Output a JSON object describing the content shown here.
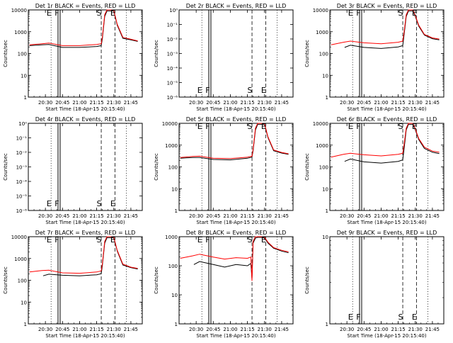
{
  "chart_data": [
    {
      "type": "line",
      "title": "Det 1r BLACK = Events, RED = LLD",
      "xlabel": "Start Time (18-Apr-15 20:15:40)",
      "ylabel": "Counts/sec",
      "yscale": "log",
      "ylim": [
        1,
        10000
      ],
      "ytick_labels": [
        "1",
        "10",
        "100",
        "1000",
        "10000"
      ],
      "xlim": [
        "20:15",
        "21:55"
      ],
      "xtick_labels": [
        "20:30",
        "20:45",
        "21:00",
        "21:15",
        "21:30",
        "21:45"
      ],
      "markers": [
        {
          "label": "E",
          "time": "20:35",
          "style": "dotted"
        },
        {
          "label": "F",
          "time": "20:42",
          "style": "double"
        },
        {
          "label": "S",
          "time": "21:19",
          "style": "dashed"
        },
        {
          "label": "E",
          "time": "21:31",
          "style": "dashed"
        },
        {
          "label": "",
          "time": "21:41",
          "style": "dotted"
        }
      ],
      "series": [
        {
          "color": "#000000",
          "x": [
            "20:16",
            "20:27",
            "20:33",
            "20:45",
            "21:00",
            "21:15",
            "21:19",
            "21:20",
            "21:22",
            "21:24",
            "21:27",
            "21:30",
            "21:33",
            "21:38",
            "21:45",
            "21:51"
          ],
          "values": [
            230,
            250,
            260,
            190,
            190,
            210,
            230,
            500,
            5000,
            9000,
            9000,
            9000,
            2000,
            500,
            420,
            360
          ]
        },
        {
          "color": "#ff0000",
          "x": [
            "20:16",
            "20:27",
            "20:33",
            "20:45",
            "21:00",
            "21:15",
            "21:19",
            "21:20",
            "21:22",
            "21:24",
            "21:27",
            "21:30",
            "21:33",
            "21:38",
            "21:45",
            "21:51"
          ],
          "values": [
            250,
            280,
            300,
            230,
            230,
            260,
            280,
            600,
            6000,
            10000,
            10000,
            9500,
            2200,
            550,
            450,
            380
          ]
        }
      ]
    },
    {
      "type": "line",
      "title": "Det 2r BLACK = Events, RED = LLD",
      "xlabel": "Start Time (18-Apr-15 20:15:40)",
      "ylabel": "Counts/sec",
      "yscale": "log",
      "ylim": [
        1e-06,
        1
      ],
      "ytick_labels": [
        "10⁻⁶",
        "10⁻⁵",
        "10⁻⁴",
        "10⁻³",
        "10⁻²",
        "10⁻¹",
        "10⁰"
      ],
      "xlim": [
        "20:15",
        "21:55"
      ],
      "xtick_labels": [
        "20:30",
        "20:45",
        "21:00",
        "21:15",
        "21:30",
        "21:45"
      ],
      "markers": [
        {
          "label": "E",
          "time": "20:35",
          "style": "dotted"
        },
        {
          "label": "F",
          "time": "20:42",
          "style": "double"
        },
        {
          "label": "S",
          "time": "21:19",
          "style": "dashed"
        },
        {
          "label": "E",
          "time": "21:31",
          "style": "dashed"
        },
        {
          "label": "",
          "time": "21:41",
          "style": "dotted"
        }
      ],
      "series": []
    },
    {
      "type": "line",
      "title": "Det 3r BLACK = Events, RED = LLD",
      "xlabel": "Start Time (18-Apr-15 20:15:40)",
      "ylabel": "Counts/sec",
      "yscale": "log",
      "ylim": [
        1,
        10000
      ],
      "ytick_labels": [
        "1",
        "10",
        "100",
        "1000",
        "10000"
      ],
      "xlim": [
        "20:15",
        "21:55"
      ],
      "xtick_labels": [
        "20:30",
        "20:45",
        "21:00",
        "21:15",
        "21:30",
        "21:45"
      ],
      "markers": [
        {
          "label": "E",
          "time": "20:35",
          "style": "dotted"
        },
        {
          "label": "F",
          "time": "20:42",
          "style": "double"
        },
        {
          "label": "S",
          "time": "21:19",
          "style": "dashed"
        },
        {
          "label": "E",
          "time": "21:31",
          "style": "dashed"
        },
        {
          "label": "",
          "time": "21:41",
          "style": "dotted"
        }
      ],
      "series": [
        {
          "color": "#000000",
          "x": [
            "20:28",
            "20:33",
            "20:45",
            "21:00",
            "21:15",
            "21:19",
            "21:20",
            "21:22",
            "21:24",
            "21:26",
            "21:28",
            "21:30",
            "21:33",
            "21:38",
            "21:45",
            "21:51"
          ],
          "values": [
            190,
            240,
            190,
            170,
            200,
            230,
            600,
            5000,
            9000,
            9000,
            9000,
            5000,
            1800,
            700,
            480,
            420
          ]
        },
        {
          "color": "#ff0000",
          "x": [
            "20:16",
            "20:27",
            "20:33",
            "20:45",
            "21:00",
            "21:15",
            "21:19",
            "21:20",
            "21:22",
            "21:24",
            "21:26",
            "21:28",
            "21:30",
            "21:33",
            "21:38",
            "21:45",
            "21:51"
          ],
          "values": [
            250,
            330,
            370,
            310,
            280,
            330,
            370,
            800,
            6000,
            10000,
            10000,
            10000,
            5500,
            2000,
            750,
            520,
            460
          ]
        }
      ]
    },
    {
      "type": "line",
      "title": "Det 4r BLACK = Events, RED = LLD",
      "xlabel": "Start Time (18-Apr-15 20:15:40)",
      "ylabel": "Counts/sec",
      "yscale": "log",
      "ylim": [
        1e-06,
        1
      ],
      "ytick_labels": [
        "10⁻⁶",
        "10⁻⁵",
        "10⁻⁴",
        "10⁻³",
        "10⁻²",
        "10⁻¹",
        "10⁰"
      ],
      "xlim": [
        "20:15",
        "21:55"
      ],
      "xtick_labels": [
        "20:30",
        "20:45",
        "21:00",
        "21:15",
        "21:30",
        "21:45"
      ],
      "markers": [
        {
          "label": "E",
          "time": "20:35",
          "style": "dotted"
        },
        {
          "label": "F",
          "time": "20:42",
          "style": "double"
        },
        {
          "label": "S",
          "time": "21:19",
          "style": "dashed"
        },
        {
          "label": "E",
          "time": "21:31",
          "style": "dashed"
        },
        {
          "label": "",
          "time": "21:41",
          "style": "dotted"
        }
      ],
      "series": []
    },
    {
      "type": "line",
      "title": "Det 5r BLACK = Events, RED = LLD",
      "xlabel": "Start Time (18-Apr-15 20:15:40)",
      "ylabel": "Counts/sec",
      "yscale": "log",
      "ylim": [
        1,
        10000
      ],
      "ytick_labels": [
        "1",
        "10",
        "100",
        "1000",
        "10000"
      ],
      "xlim": [
        "20:15",
        "21:55"
      ],
      "xtick_labels": [
        "20:30",
        "20:45",
        "21:00",
        "21:15",
        "21:30",
        "21:45"
      ],
      "markers": [
        {
          "label": "E",
          "time": "20:35",
          "style": "dotted"
        },
        {
          "label": "F",
          "time": "20:42",
          "style": "double"
        },
        {
          "label": "S",
          "time": "21:19",
          "style": "dashed"
        },
        {
          "label": "E",
          "time": "21:31",
          "style": "dashed"
        },
        {
          "label": "",
          "time": "21:41",
          "style": "dotted"
        }
      ],
      "series": [
        {
          "color": "#000000",
          "x": [
            "20:16",
            "20:27",
            "20:33",
            "20:45",
            "21:00",
            "21:15",
            "21:19",
            "21:20",
            "21:22",
            "21:24",
            "21:27",
            "21:30",
            "21:33",
            "21:38",
            "21:45",
            "21:51"
          ],
          "values": [
            250,
            270,
            270,
            220,
            210,
            250,
            280,
            550,
            5000,
            9000,
            9000,
            9000,
            2200,
            550,
            430,
            380
          ]
        },
        {
          "color": "#ff0000",
          "x": [
            "20:16",
            "20:27",
            "20:33",
            "20:45",
            "21:00",
            "21:15",
            "21:19",
            "21:20",
            "21:22",
            "21:24",
            "21:27",
            "21:30",
            "21:33",
            "21:38",
            "21:45",
            "21:51"
          ],
          "values": [
            270,
            300,
            310,
            250,
            240,
            280,
            310,
            650,
            6000,
            10000,
            10000,
            9500,
            2400,
            600,
            460,
            400
          ]
        }
      ]
    },
    {
      "type": "line",
      "title": "Det 6r BLACK = Events, RED = LLD",
      "xlabel": "Start Time (18-Apr-15 20:15:40)",
      "ylabel": "Counts/sec",
      "yscale": "log",
      "ylim": [
        1,
        10000
      ],
      "ytick_labels": [
        "1",
        "10",
        "100",
        "1000",
        "10000"
      ],
      "xlim": [
        "20:15",
        "21:55"
      ],
      "xtick_labels": [
        "20:30",
        "20:45",
        "21:00",
        "21:15",
        "21:30",
        "21:45"
      ],
      "markers": [
        {
          "label": "E",
          "time": "20:35",
          "style": "dotted"
        },
        {
          "label": "F",
          "time": "20:42",
          "style": "double"
        },
        {
          "label": "S",
          "time": "21:19",
          "style": "dashed"
        },
        {
          "label": "E",
          "time": "21:31",
          "style": "dashed"
        },
        {
          "label": "",
          "time": "21:41",
          "style": "dotted"
        }
      ],
      "series": [
        {
          "color": "#000000",
          "x": [
            "20:28",
            "20:33",
            "20:45",
            "21:00",
            "21:15",
            "21:19",
            "21:20",
            "21:22",
            "21:24",
            "21:26",
            "21:28",
            "21:30",
            "21:33",
            "21:38",
            "21:45",
            "21:51"
          ],
          "values": [
            180,
            230,
            170,
            150,
            180,
            210,
            550,
            5000,
            9000,
            9000,
            9000,
            5000,
            1800,
            700,
            470,
            410
          ]
        },
        {
          "color": "#ff0000",
          "x": [
            "20:16",
            "20:27",
            "20:33",
            "20:45",
            "21:00",
            "21:15",
            "21:19",
            "21:20",
            "21:22",
            "21:24",
            "21:26",
            "21:28",
            "21:30",
            "21:33",
            "21:38",
            "21:45",
            "21:51"
          ],
          "values": [
            280,
            380,
            420,
            360,
            320,
            380,
            420,
            900,
            6000,
            10000,
            10000,
            10000,
            5500,
            2000,
            800,
            530,
            470
          ]
        }
      ]
    },
    {
      "type": "line",
      "title": "Det 7r BLACK = Events, RED = LLD",
      "xlabel": "Start Time (18-Apr-15 20:15:40)",
      "ylabel": "Counts/sec",
      "yscale": "log",
      "ylim": [
        1,
        10000
      ],
      "ytick_labels": [
        "1",
        "10",
        "100",
        "1000",
        "10000"
      ],
      "xlim": [
        "20:15",
        "21:55"
      ],
      "xtick_labels": [
        "20:30",
        "20:45",
        "21:00",
        "21:15",
        "21:30",
        "21:45"
      ],
      "markers": [
        {
          "label": "E",
          "time": "20:35",
          "style": "dotted"
        },
        {
          "label": "F",
          "time": "20:42",
          "style": "double"
        },
        {
          "label": "S",
          "time": "21:19",
          "style": "dashed"
        },
        {
          "label": "E",
          "time": "21:31",
          "style": "dashed"
        },
        {
          "label": "",
          "time": "21:41",
          "style": "dotted"
        }
      ],
      "series": [
        {
          "color": "#000000",
          "x": [
            "20:28",
            "20:33",
            "20:45",
            "21:00",
            "21:15",
            "21:19",
            "21:20",
            "21:22",
            "21:24",
            "21:27",
            "21:30",
            "21:33",
            "21:38",
            "21:45",
            "21:51"
          ],
          "values": [
            160,
            190,
            170,
            160,
            180,
            200,
            500,
            5000,
            9000,
            9000,
            9000,
            2200,
            500,
            380,
            330
          ]
        },
        {
          "color": "#ff0000",
          "x": [
            "20:16",
            "20:27",
            "20:33",
            "20:45",
            "21:00",
            "21:15",
            "21:19",
            "21:20",
            "21:22",
            "21:24",
            "21:27",
            "21:30",
            "21:33",
            "21:38",
            "21:45",
            "21:51"
          ],
          "values": [
            240,
            280,
            290,
            220,
            210,
            240,
            270,
            600,
            6000,
            10000,
            10000,
            9500,
            2400,
            550,
            400,
            350
          ]
        }
      ]
    },
    {
      "type": "line",
      "title": "Det 8r BLACK = Events, RED = LLD",
      "xlabel": "Start Time (18-Apr-15 20:15:40)",
      "ylabel": "Counts/sec",
      "yscale": "log",
      "ylim": [
        1,
        1000
      ],
      "ytick_labels": [
        "1",
        "10",
        "100",
        "1000"
      ],
      "xlim": [
        "20:15",
        "21:55"
      ],
      "xtick_labels": [
        "20:30",
        "20:45",
        "21:00",
        "21:15",
        "21:30",
        "21:45"
      ],
      "markers": [
        {
          "label": "E",
          "time": "20:35",
          "style": "dotted"
        },
        {
          "label": "F",
          "time": "20:42",
          "style": "double"
        },
        {
          "label": "S",
          "time": "21:19",
          "style": "dashed"
        },
        {
          "label": "E",
          "time": "21:31",
          "style": "dashed"
        },
        {
          "label": "",
          "time": "21:41",
          "style": "dotted"
        }
      ],
      "series": [
        {
          "color": "#000000",
          "x": [
            "20:28",
            "20:33",
            "20:45",
            "20:55",
            "21:05",
            "21:15",
            "21:18",
            "21:19",
            "21:20",
            "21:22",
            "21:24",
            "21:27",
            "21:30",
            "21:33",
            "21:38",
            "21:45",
            "21:51"
          ],
          "values": [
            110,
            140,
            110,
            90,
            110,
            100,
            120,
            35,
            600,
            900,
            950,
            950,
            900,
            600,
            400,
            320,
            280
          ]
        },
        {
          "color": "#ff0000",
          "x": [
            "20:16",
            "20:27",
            "20:33",
            "20:45",
            "20:55",
            "21:05",
            "21:15",
            "21:18",
            "21:19",
            "21:20",
            "21:22",
            "21:24",
            "21:27",
            "21:30",
            "21:33",
            "21:38",
            "21:45",
            "21:51"
          ],
          "values": [
            180,
            220,
            250,
            200,
            170,
            190,
            180,
            200,
            30,
            700,
            1000,
            1000,
            1000,
            950,
            650,
            420,
            340,
            300
          ]
        }
      ]
    },
    {
      "type": "line",
      "title": "Det 9r BLACK = Events, RED = LLD",
      "xlabel": "Start Time (18-Apr-15 20:15:40)",
      "ylabel": "Counts/sec",
      "yscale": "log",
      "ylim": [
        1,
        10
      ],
      "ytick_labels": [
        "1",
        "10"
      ],
      "xlim": [
        "20:15",
        "21:55"
      ],
      "xtick_labels": [
        "20:30",
        "20:45",
        "21:00",
        "21:15",
        "21:30",
        "21:45"
      ],
      "markers": [
        {
          "label": "E",
          "time": "20:35",
          "style": "dotted"
        },
        {
          "label": "F",
          "time": "20:42",
          "style": "double"
        },
        {
          "label": "S",
          "time": "21:19",
          "style": "dashed"
        },
        {
          "label": "E",
          "time": "21:31",
          "style": "dashed"
        },
        {
          "label": "",
          "time": "21:41",
          "style": "dotted"
        }
      ],
      "series": []
    }
  ]
}
